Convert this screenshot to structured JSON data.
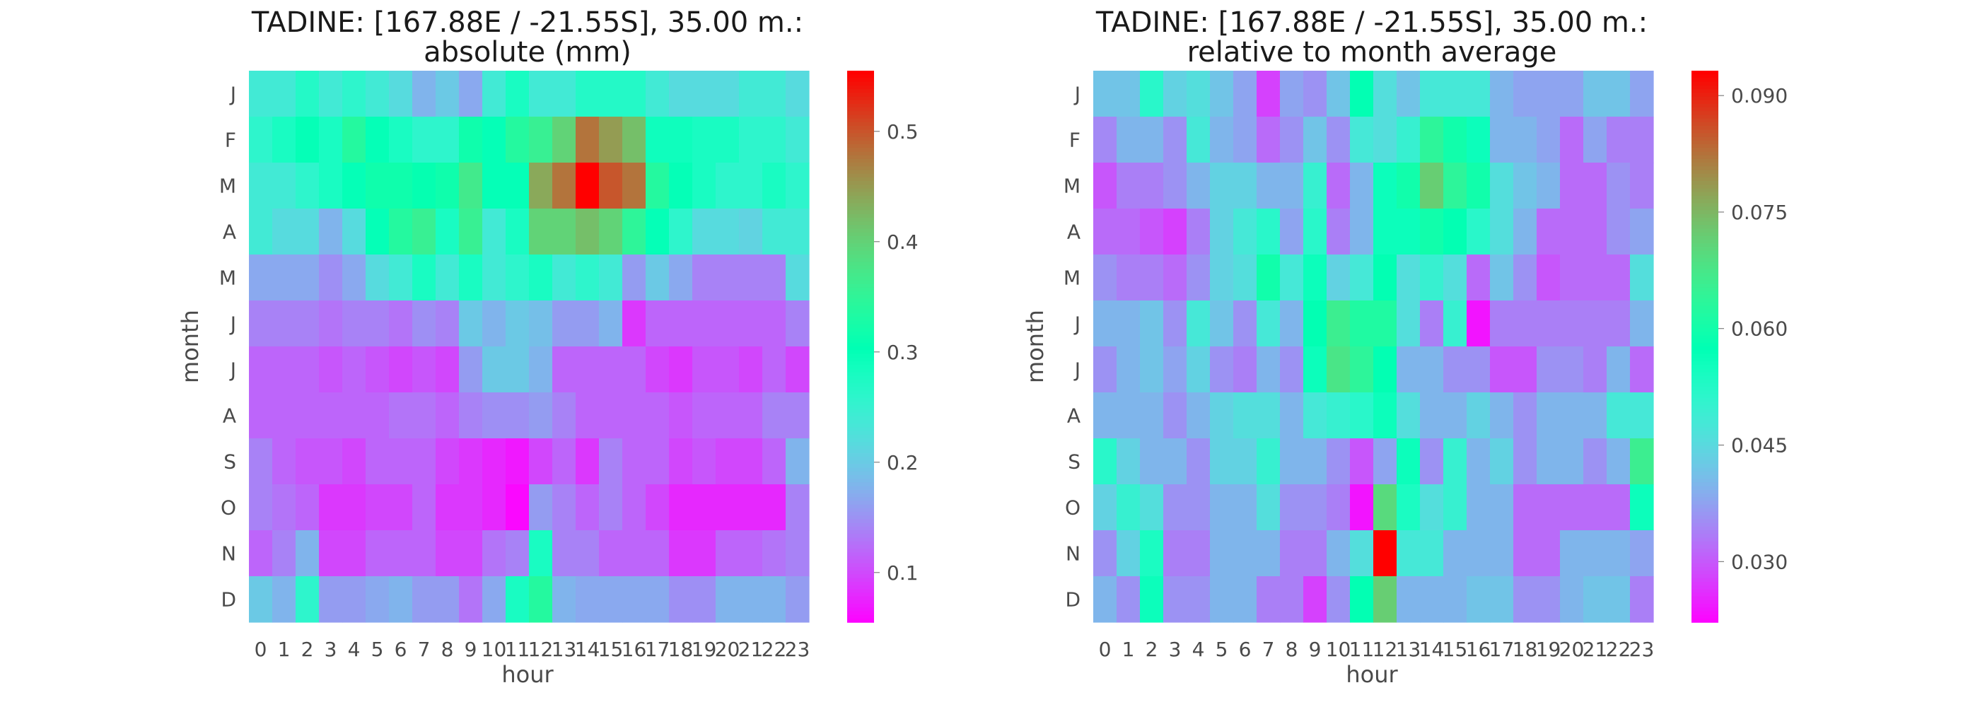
{
  "chart_data": [
    {
      "type": "heatmap",
      "title_line1": "TADINE: [167.88E / -21.55S], 35.00 m.:",
      "title_line2": "absolute (mm)",
      "xlabel": "hour",
      "ylabel": "month",
      "x": [
        "0",
        "1",
        "2",
        "3",
        "4",
        "5",
        "6",
        "7",
        "8",
        "9",
        "10",
        "11",
        "12",
        "13",
        "14",
        "15",
        "16",
        "17",
        "18",
        "19",
        "20",
        "21",
        "22",
        "23"
      ],
      "y": [
        "J",
        "F",
        "M",
        "A",
        "M",
        "J",
        "J",
        "A",
        "S",
        "O",
        "N",
        "D"
      ],
      "colormap": "rainbow",
      "vmin": 0.055,
      "vmax": 0.555,
      "colorbar_ticks": [
        "0.1",
        "0.2",
        "0.3",
        "0.4",
        "0.5"
      ],
      "values": [
        [
          0.24,
          0.24,
          0.27,
          0.24,
          0.26,
          0.24,
          0.22,
          0.18,
          0.2,
          0.17,
          0.24,
          0.28,
          0.24,
          0.24,
          0.27,
          0.27,
          0.27,
          0.24,
          0.22,
          0.22,
          0.22,
          0.24,
          0.24,
          0.22
        ],
        [
          0.26,
          0.28,
          0.3,
          0.28,
          0.34,
          0.3,
          0.28,
          0.26,
          0.26,
          0.32,
          0.3,
          0.34,
          0.36,
          0.4,
          0.48,
          0.45,
          0.42,
          0.29,
          0.29,
          0.28,
          0.28,
          0.26,
          0.26,
          0.24
        ],
        [
          0.24,
          0.24,
          0.26,
          0.28,
          0.3,
          0.32,
          0.32,
          0.31,
          0.32,
          0.37,
          0.3,
          0.3,
          0.44,
          0.48,
          0.555,
          0.5,
          0.48,
          0.34,
          0.3,
          0.28,
          0.26,
          0.26,
          0.28,
          0.26
        ],
        [
          0.24,
          0.22,
          0.22,
          0.18,
          0.22,
          0.3,
          0.34,
          0.36,
          0.28,
          0.36,
          0.24,
          0.28,
          0.4,
          0.4,
          0.42,
          0.4,
          0.35,
          0.3,
          0.26,
          0.22,
          0.22,
          0.21,
          0.24,
          0.24
        ],
        [
          0.17,
          0.17,
          0.17,
          0.15,
          0.17,
          0.22,
          0.24,
          0.28,
          0.24,
          0.28,
          0.24,
          0.26,
          0.28,
          0.24,
          0.26,
          0.24,
          0.16,
          0.2,
          0.17,
          0.14,
          0.14,
          0.14,
          0.14,
          0.22
        ],
        [
          0.14,
          0.14,
          0.14,
          0.13,
          0.14,
          0.14,
          0.13,
          0.15,
          0.14,
          0.2,
          0.18,
          0.2,
          0.19,
          0.16,
          0.16,
          0.18,
          0.09,
          0.12,
          0.12,
          0.12,
          0.12,
          0.12,
          0.12,
          0.14
        ],
        [
          0.12,
          0.12,
          0.12,
          0.11,
          0.12,
          0.11,
          0.1,
          0.11,
          0.1,
          0.16,
          0.2,
          0.2,
          0.18,
          0.12,
          0.12,
          0.12,
          0.12,
          0.1,
          0.09,
          0.11,
          0.11,
          0.1,
          0.12,
          0.1
        ],
        [
          0.12,
          0.12,
          0.12,
          0.12,
          0.12,
          0.12,
          0.13,
          0.13,
          0.12,
          0.14,
          0.15,
          0.15,
          0.16,
          0.14,
          0.12,
          0.12,
          0.12,
          0.12,
          0.11,
          0.12,
          0.12,
          0.12,
          0.14,
          0.14
        ],
        [
          0.14,
          0.12,
          0.11,
          0.11,
          0.1,
          0.12,
          0.12,
          0.12,
          0.1,
          0.09,
          0.08,
          0.07,
          0.1,
          0.12,
          0.09,
          0.14,
          0.12,
          0.12,
          0.1,
          0.11,
          0.1,
          0.1,
          0.12,
          0.18
        ],
        [
          0.14,
          0.13,
          0.12,
          0.09,
          0.09,
          0.1,
          0.1,
          0.12,
          0.09,
          0.09,
          0.08,
          0.06,
          0.16,
          0.14,
          0.12,
          0.14,
          0.12,
          0.1,
          0.08,
          0.08,
          0.08,
          0.08,
          0.08,
          0.14
        ],
        [
          0.12,
          0.14,
          0.18,
          0.1,
          0.1,
          0.12,
          0.12,
          0.12,
          0.1,
          0.1,
          0.13,
          0.14,
          0.28,
          0.14,
          0.14,
          0.12,
          0.12,
          0.12,
          0.09,
          0.09,
          0.12,
          0.12,
          0.13,
          0.14
        ],
        [
          0.2,
          0.18,
          0.26,
          0.16,
          0.16,
          0.17,
          0.18,
          0.16,
          0.16,
          0.13,
          0.17,
          0.28,
          0.34,
          0.18,
          0.17,
          0.17,
          0.17,
          0.17,
          0.15,
          0.15,
          0.18,
          0.18,
          0.18,
          0.16
        ]
      ]
    },
    {
      "type": "heatmap",
      "title_line1": "TADINE: [167.88E / -21.55S], 35.00 m.:",
      "title_line2": "relative to month average",
      "xlabel": "hour",
      "ylabel": "month",
      "x": [
        "0",
        "1",
        "2",
        "3",
        "4",
        "5",
        "6",
        "7",
        "8",
        "9",
        "10",
        "11",
        "12",
        "13",
        "14",
        "15",
        "16",
        "17",
        "18",
        "19",
        "20",
        "21",
        "22",
        "23"
      ],
      "y": [
        "J",
        "F",
        "M",
        "A",
        "M",
        "J",
        "J",
        "A",
        "S",
        "O",
        "N",
        "D"
      ],
      "colormap": "rainbow",
      "vmin": 0.0222,
      "vmax": 0.0932,
      "colorbar_ticks": [
        "0.030",
        "0.045",
        "0.060",
        "0.075",
        "0.090"
      ],
      "values": [
        [
          0.042,
          0.042,
          0.052,
          0.044,
          0.046,
          0.042,
          0.038,
          0.028,
          0.038,
          0.036,
          0.042,
          0.058,
          0.046,
          0.042,
          0.048,
          0.048,
          0.048,
          0.04,
          0.038,
          0.038,
          0.038,
          0.042,
          0.042,
          0.038
        ],
        [
          0.035,
          0.04,
          0.04,
          0.036,
          0.048,
          0.04,
          0.038,
          0.032,
          0.036,
          0.042,
          0.036,
          0.048,
          0.046,
          0.05,
          0.064,
          0.06,
          0.056,
          0.04,
          0.04,
          0.038,
          0.032,
          0.038,
          0.034,
          0.034
        ],
        [
          0.03,
          0.034,
          0.034,
          0.036,
          0.04,
          0.044,
          0.044,
          0.04,
          0.04,
          0.05,
          0.032,
          0.04,
          0.056,
          0.06,
          0.072,
          0.064,
          0.06,
          0.046,
          0.042,
          0.04,
          0.032,
          0.032,
          0.036,
          0.034
        ],
        [
          0.032,
          0.032,
          0.03,
          0.028,
          0.034,
          0.044,
          0.048,
          0.052,
          0.038,
          0.052,
          0.034,
          0.04,
          0.056,
          0.056,
          0.06,
          0.058,
          0.052,
          0.046,
          0.04,
          0.032,
          0.032,
          0.032,
          0.036,
          0.038
        ],
        [
          0.036,
          0.034,
          0.034,
          0.032,
          0.036,
          0.044,
          0.046,
          0.06,
          0.048,
          0.056,
          0.044,
          0.048,
          0.058,
          0.046,
          0.05,
          0.046,
          0.032,
          0.042,
          0.036,
          0.03,
          0.032,
          0.032,
          0.032,
          0.046
        ],
        [
          0.04,
          0.04,
          0.042,
          0.036,
          0.048,
          0.042,
          0.036,
          0.048,
          0.04,
          0.058,
          0.066,
          0.062,
          0.062,
          0.046,
          0.034,
          0.05,
          0.024,
          0.034,
          0.034,
          0.034,
          0.034,
          0.034,
          0.034,
          0.04
        ],
        [
          0.036,
          0.04,
          0.042,
          0.038,
          0.044,
          0.036,
          0.034,
          0.04,
          0.036,
          0.056,
          0.068,
          0.064,
          0.058,
          0.04,
          0.04,
          0.036,
          0.036,
          0.03,
          0.03,
          0.036,
          0.036,
          0.034,
          0.04,
          0.032
        ],
        [
          0.04,
          0.04,
          0.04,
          0.036,
          0.04,
          0.044,
          0.046,
          0.046,
          0.04,
          0.048,
          0.05,
          0.052,
          0.056,
          0.046,
          0.04,
          0.04,
          0.044,
          0.04,
          0.036,
          0.04,
          0.04,
          0.04,
          0.048,
          0.048
        ],
        [
          0.052,
          0.044,
          0.04,
          0.04,
          0.036,
          0.044,
          0.044,
          0.05,
          0.04,
          0.04,
          0.036,
          0.03,
          0.038,
          0.056,
          0.036,
          0.05,
          0.04,
          0.044,
          0.036,
          0.04,
          0.04,
          0.036,
          0.04,
          0.066
        ],
        [
          0.044,
          0.05,
          0.046,
          0.036,
          0.036,
          0.04,
          0.04,
          0.046,
          0.036,
          0.036,
          0.034,
          0.024,
          0.07,
          0.054,
          0.046,
          0.05,
          0.04,
          0.04,
          0.032,
          0.032,
          0.032,
          0.032,
          0.032,
          0.056
        ],
        [
          0.036,
          0.044,
          0.054,
          0.034,
          0.034,
          0.04,
          0.04,
          0.04,
          0.034,
          0.034,
          0.04,
          0.046,
          0.0932,
          0.048,
          0.048,
          0.04,
          0.04,
          0.04,
          0.032,
          0.032,
          0.04,
          0.04,
          0.04,
          0.038
        ],
        [
          0.04,
          0.036,
          0.056,
          0.036,
          0.036,
          0.04,
          0.04,
          0.034,
          0.034,
          0.028,
          0.036,
          0.058,
          0.072,
          0.04,
          0.04,
          0.04,
          0.042,
          0.042,
          0.036,
          0.036,
          0.04,
          0.042,
          0.042,
          0.034
        ]
      ]
    }
  ]
}
